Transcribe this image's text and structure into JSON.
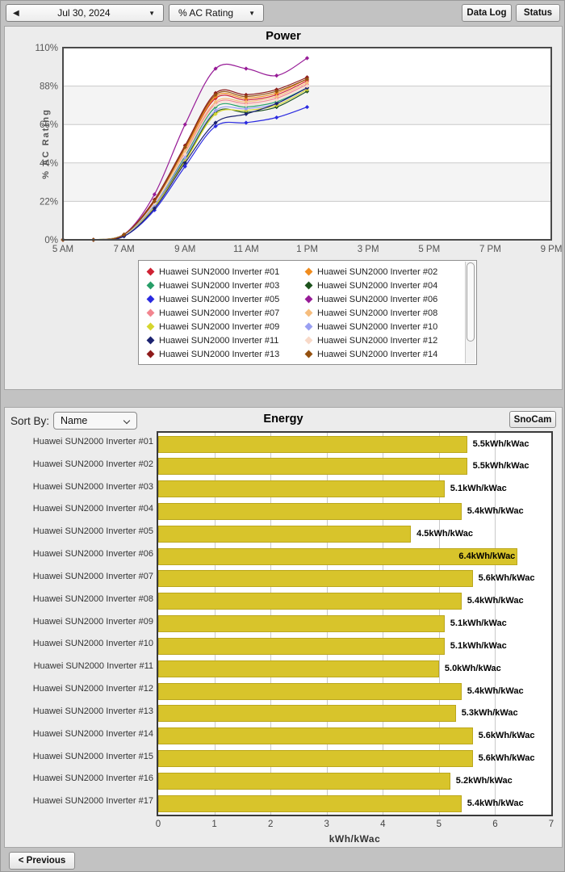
{
  "toolbar": {
    "date": "Jul 30, 2024",
    "metric": "% AC Rating",
    "data_log_label": "Data Log",
    "status_label": "Status"
  },
  "energy_controls": {
    "sort_by_label": "Sort By:",
    "sort_value": "Name",
    "snocam_label": "SnoCam"
  },
  "footer": {
    "previous_label": "< Previous"
  },
  "colors": {
    "bar_yellow": "#d8c42b",
    "panel_bg": "#ececec",
    "band_gray": "#f4f4f4"
  },
  "chart_data": [
    {
      "type": "line",
      "title": "Power",
      "ylabel": "% AC Rating",
      "xlabel": "",
      "ylim": [
        0,
        110
      ],
      "ytick_labels": [
        "0%",
        "22%",
        "44%",
        "66%",
        "88%",
        "110%"
      ],
      "xlim_hours": [
        5,
        21
      ],
      "xtick_hours": [
        5,
        7,
        9,
        11,
        13,
        15,
        17,
        19,
        21
      ],
      "xtick_labels": [
        "5 AM",
        "7 AM",
        "9 AM",
        "11 AM",
        "1 PM",
        "3 PM",
        "5 PM",
        "7 PM",
        "9 PM"
      ],
      "grid": "horizontal-bands",
      "legend_position": "bottom",
      "x_hours": [
        5,
        6,
        7,
        8,
        9,
        10,
        11,
        12,
        13
      ],
      "series": [
        {
          "name": "Huawei SUN2000 Inverter #01",
          "color": "#cf2233",
          "values": [
            0,
            0,
            3,
            22,
            52,
            81,
            80,
            83,
            91
          ]
        },
        {
          "name": "Huawei SUN2000 Inverter #02",
          "color": "#f08c1e",
          "values": [
            0,
            0,
            3,
            22,
            52,
            82,
            81,
            84,
            92
          ]
        },
        {
          "name": "Huawei SUN2000 Inverter #03",
          "color": "#279e68",
          "values": [
            0,
            0,
            3,
            20,
            48,
            76,
            76,
            79,
            87
          ]
        },
        {
          "name": "Huawei SUN2000 Inverter #04",
          "color": "#1d531d",
          "values": [
            0,
            0,
            3,
            19,
            46,
            73,
            73,
            76,
            85
          ]
        },
        {
          "name": "Huawei SUN2000 Inverter #05",
          "color": "#2a2ae0",
          "values": [
            0,
            0,
            2,
            17,
            42,
            65,
            67,
            70,
            76
          ]
        },
        {
          "name": "Huawei SUN2000 Inverter #06",
          "color": "#971b97",
          "values": [
            0,
            0,
            3,
            26,
            66,
            98,
            98,
            94,
            104
          ]
        },
        {
          "name": "Huawei SUN2000 Inverter #07",
          "color": "#f2858f",
          "values": [
            0,
            0,
            3,
            21,
            50,
            78,
            78,
            81,
            89
          ]
        },
        {
          "name": "Huawei SUN2000 Inverter #08",
          "color": "#f6bd7d",
          "values": [
            0,
            0,
            3,
            21,
            51,
            79,
            79,
            82,
            90
          ]
        },
        {
          "name": "Huawei SUN2000 Inverter #09",
          "color": "#d6d62e",
          "values": [
            0,
            0,
            3,
            19,
            45,
            72,
            74,
            77,
            86
          ]
        },
        {
          "name": "Huawei SUN2000 Inverter #10",
          "color": "#9aa0f2",
          "values": [
            0,
            0,
            3,
            20,
            47,
            74,
            75,
            78,
            87
          ]
        },
        {
          "name": "Huawei SUN2000 Inverter #11",
          "color": "#1c2370",
          "values": [
            0,
            0,
            2,
            18,
            44,
            67,
            72,
            78,
            87
          ]
        },
        {
          "name": "Huawei SUN2000 Inverter #12",
          "color": "#f8d9c8",
          "values": [
            0,
            0,
            3,
            21,
            49,
            77,
            77,
            80,
            88
          ]
        },
        {
          "name": "Huawei SUN2000 Inverter #13",
          "color": "#8e1a1a",
          "values": [
            0,
            0,
            3,
            23,
            54,
            84,
            83,
            86,
            93
          ]
        },
        {
          "name": "Huawei SUN2000 Inverter #14",
          "color": "#94500f",
          "values": [
            0,
            0,
            3,
            22,
            53,
            83,
            82,
            85,
            92
          ]
        }
      ]
    },
    {
      "type": "bar",
      "title": "Energy",
      "xlabel": "kWh/kWac",
      "xlim": [
        0,
        7
      ],
      "xticks": [
        "0",
        "1",
        "2",
        "3",
        "4",
        "5",
        "6",
        "7"
      ],
      "grid": "vertical",
      "bar_color": "#d8c42b",
      "categories": [
        "Huawei SUN2000 Inverter #01",
        "Huawei SUN2000 Inverter #02",
        "Huawei SUN2000 Inverter #03",
        "Huawei SUN2000 Inverter #04",
        "Huawei SUN2000 Inverter #05",
        "Huawei SUN2000 Inverter #06",
        "Huawei SUN2000 Inverter #07",
        "Huawei SUN2000 Inverter #08",
        "Huawei SUN2000 Inverter #09",
        "Huawei SUN2000 Inverter #10",
        "Huawei SUN2000 Inverter #11",
        "Huawei SUN2000 Inverter #12",
        "Huawei SUN2000 Inverter #13",
        "Huawei SUN2000 Inverter #14",
        "Huawei SUN2000 Inverter #15",
        "Huawei SUN2000 Inverter #16",
        "Huawei SUN2000 Inverter #17"
      ],
      "values": [
        5.5,
        5.5,
        5.1,
        5.4,
        4.5,
        6.4,
        5.6,
        5.4,
        5.1,
        5.1,
        5.0,
        5.4,
        5.3,
        5.6,
        5.6,
        5.2,
        5.4
      ],
      "value_labels": [
        "5.5kWh/kWac",
        "5.5kWh/kWac",
        "5.1kWh/kWac",
        "5.4kWh/kWac",
        "4.5kWh/kWac",
        "6.4kWh/kWac",
        "5.6kWh/kWac",
        "5.4kWh/kWac",
        "5.1kWh/kWac",
        "5.1kWh/kWac",
        "5.0kWh/kWac",
        "5.4kWh/kWac",
        "5.3kWh/kWac",
        "5.6kWh/kWac",
        "5.6kWh/kWac",
        "5.2kWh/kWac",
        "5.4kWh/kWac"
      ]
    }
  ]
}
